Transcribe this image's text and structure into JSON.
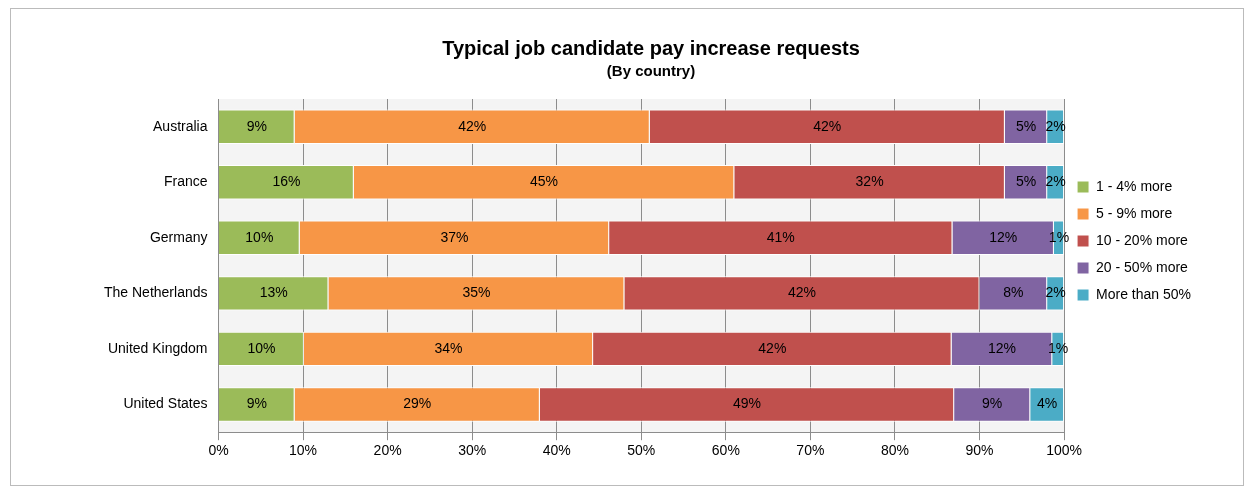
{
  "chart_data": {
    "type": "bar",
    "orientation": "horizontal",
    "stacked": true,
    "title": "Typical job candidate pay increase requests",
    "subtitle": "(By country)",
    "categories": [
      "Australia",
      "France",
      "Germany",
      "The Netherlands",
      "United Kingdom",
      "United States"
    ],
    "series": [
      {
        "name": "1 - 4% more",
        "color": "#9bbb59",
        "values": [
          9,
          16,
          9.6,
          13,
          10.1,
          9
        ],
        "value_labels": [
          "9%",
          "16%",
          "10%",
          "13%",
          "10%",
          "9%"
        ]
      },
      {
        "name": "5 - 9% more",
        "color": "#f79646",
        "values": [
          42,
          45,
          36.6,
          35,
          34.2,
          29
        ],
        "value_labels": [
          "42%",
          "45%",
          "37%",
          "35%",
          "34%",
          "29%"
        ]
      },
      {
        "name": "10 - 20% more",
        "color": "#c0504d",
        "values": [
          42,
          32,
          40.6,
          42,
          42.4,
          49
        ],
        "value_labels": [
          "42%",
          "32%",
          "41%",
          "42%",
          "42%",
          "49%"
        ]
      },
      {
        "name": "20 - 50% more",
        "color": "#8064a2",
        "values": [
          5,
          5,
          12,
          8,
          11.9,
          9
        ],
        "value_labels": [
          "5%",
          "5%",
          "12%",
          "8%",
          "12%",
          "9%"
        ]
      },
      {
        "name": "More than 50%",
        "color": "#4bacc6",
        "values": [
          2,
          2,
          1.2,
          2,
          1.4,
          4
        ],
        "value_labels": [
          "2%",
          "2%",
          "1%",
          "2%",
          "1%",
          "4%"
        ]
      }
    ],
    "xlim": [
      0,
      100
    ],
    "xticks": [
      {
        "value": 0,
        "label": "0%"
      },
      {
        "value": 10,
        "label": "10%"
      },
      {
        "value": 20,
        "label": "20%"
      },
      {
        "value": 30,
        "label": "30%"
      },
      {
        "value": 40,
        "label": "40%"
      },
      {
        "value": 50,
        "label": "50%"
      },
      {
        "value": 60,
        "label": "60%"
      },
      {
        "value": 70,
        "label": "70%"
      },
      {
        "value": 80,
        "label": "80%"
      },
      {
        "value": 90,
        "label": "90%"
      },
      {
        "value": 100,
        "label": "100%"
      }
    ],
    "grid": "x",
    "legend": "right"
  }
}
